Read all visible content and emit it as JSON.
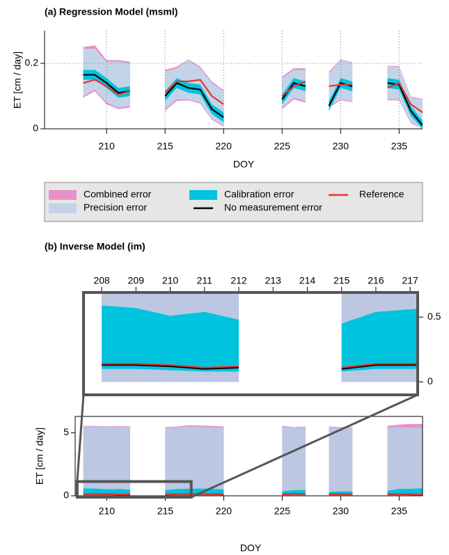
{
  "chart_data": [
    {
      "type": "band-line",
      "title": "(a) Regression Model (msml)",
      "xlabel": "DOY",
      "ylabel": "ET [cm / day]",
      "xlim": [
        204.7,
        237
      ],
      "ylim": [
        0,
        0.3
      ],
      "xticks": [
        210,
        215,
        220,
        225,
        230,
        235
      ],
      "yticks": [
        0,
        0.2
      ],
      "grid": true,
      "legend": "below",
      "x": [
        208,
        209,
        210,
        211,
        212,
        213,
        214,
        215,
        216,
        217,
        218,
        219,
        220,
        221,
        222,
        223,
        224,
        225,
        226,
        227,
        228,
        229,
        230,
        231,
        232,
        233,
        234,
        235,
        236,
        237
      ],
      "series": [
        {
          "name": "Combined error",
          "type": "band",
          "color": "#e891c8",
          "upper": [
            0.25,
            0.255,
            0.21,
            0.21,
            0.205,
            null,
            null,
            0.18,
            0.19,
            0.212,
            0.19,
            0.145,
            0.118,
            null,
            null,
            null,
            null,
            0.16,
            0.185,
            0.185,
            null,
            0.175,
            0.212,
            0.203,
            null,
            null,
            0.192,
            0.192,
            0.098,
            0.092
          ],
          "lower": [
            0.095,
            0.115,
            0.075,
            0.06,
            0.065,
            null,
            null,
            0.055,
            0.085,
            0.087,
            0.077,
            0.027,
            0.007,
            null,
            null,
            null,
            null,
            0.06,
            0.09,
            0.08,
            null,
            0.065,
            0.087,
            0.082,
            null,
            null,
            0.087,
            0.087,
            0.017,
            0
          ]
        },
        {
          "name": "Precision error",
          "type": "band",
          "color": "#c3d4e8",
          "upper": [
            0.245,
            0.245,
            0.205,
            0.205,
            0.2,
            null,
            null,
            0.175,
            0.185,
            0.21,
            0.185,
            0.14,
            0.115,
            null,
            null,
            null,
            null,
            0.155,
            0.18,
            0.18,
            null,
            0.17,
            0.21,
            0.2,
            null,
            null,
            0.19,
            0.19,
            0.095,
            0.09
          ],
          "lower": [
            0.1,
            0.12,
            0.08,
            0.065,
            0.07,
            null,
            null,
            0.06,
            0.09,
            0.09,
            0.08,
            0.03,
            0.01,
            null,
            null,
            null,
            null,
            0.065,
            0.095,
            0.085,
            null,
            0.07,
            0.09,
            0.085,
            null,
            null,
            0.09,
            0.09,
            0.02,
            0
          ]
        },
        {
          "name": "Calibration error",
          "type": "band",
          "color": "#00c4de",
          "upper": [
            0.18,
            0.18,
            0.155,
            0.125,
            0.13,
            null,
            null,
            0.115,
            0.155,
            0.14,
            0.135,
            0.075,
            0.05,
            null,
            null,
            null,
            null,
            0.105,
            0.155,
            0.145,
            null,
            0.085,
            0.155,
            0.145,
            null,
            null,
            0.155,
            0.15,
            0.07,
            0.025
          ],
          "lower": [
            0.15,
            0.15,
            0.125,
            0.095,
            0.1,
            null,
            null,
            0.085,
            0.125,
            0.11,
            0.105,
            0.045,
            0.02,
            null,
            null,
            null,
            null,
            0.075,
            0.125,
            0.115,
            null,
            0.055,
            0.125,
            0.115,
            null,
            null,
            0.125,
            0.12,
            0.04,
            0
          ]
        },
        {
          "name": "No measurement error",
          "type": "line",
          "color": "#000000",
          "values": [
            0.165,
            0.165,
            0.14,
            0.11,
            0.115,
            null,
            null,
            0.1,
            0.14,
            0.125,
            0.12,
            0.06,
            0.035,
            null,
            null,
            null,
            null,
            0.09,
            0.14,
            0.13,
            null,
            0.07,
            0.14,
            0.13,
            null,
            null,
            0.14,
            0.135,
            0.055,
            0.01
          ]
        },
        {
          "name": "Reference",
          "type": "line",
          "color": "#e8352b",
          "values": [
            0.14,
            0.15,
            0.13,
            0.105,
            0.115,
            null,
            null,
            0.11,
            0.145,
            0.145,
            0.15,
            0.1,
            0.075,
            null,
            null,
            null,
            null,
            0.1,
            0.13,
            0.145,
            null,
            0.13,
            0.135,
            0.135,
            null,
            null,
            0.125,
            0.14,
            0.075,
            0.05
          ]
        }
      ]
    },
    {
      "type": "band-line",
      "title": "(b) Inverse Model (im)",
      "xlabel": "DOY",
      "ylabel": "ET [cm / day]",
      "xlim": [
        207.3,
        237
      ],
      "ylim": [
        0,
        6.3
      ],
      "xticks": [
        210,
        215,
        220,
        225,
        230,
        235
      ],
      "yticks": [
        0,
        5
      ],
      "grid": false,
      "inset": {
        "xlim": [
          207.47,
          217.22
        ],
        "ylim": [
          -0.1,
          0.69
        ],
        "xticks": [
          208,
          209,
          210,
          211,
          212,
          213,
          214,
          215,
          216,
          217
        ],
        "yticks": [
          0,
          0.5
        ]
      },
      "x": [
        208,
        209,
        210,
        211,
        212,
        213,
        214,
        215,
        216,
        217,
        218,
        219,
        220,
        221,
        222,
        223,
        224,
        225,
        226,
        227,
        228,
        229,
        230,
        231,
        232,
        233,
        234,
        235,
        236,
        237
      ],
      "series": [
        {
          "type": "band",
          "color": "#e891c8",
          "upper": [
            5.55,
            5.55,
            5.52,
            5.55,
            5.5,
            null,
            null,
            5.45,
            5.5,
            5.6,
            5.58,
            5.55,
            5.5,
            null,
            null,
            null,
            null,
            5.55,
            5.45,
            5.5,
            null,
            5.5,
            5.45,
            5.45,
            null,
            null,
            5.55,
            5.65,
            5.7,
            5.7
          ],
          "lower": [
            0,
            0,
            0,
            0,
            0,
            null,
            null,
            0,
            0,
            0,
            0,
            0,
            0,
            null,
            null,
            null,
            null,
            0,
            0,
            0,
            null,
            0,
            0,
            0,
            null,
            null,
            0,
            0,
            0,
            0
          ]
        },
        {
          "type": "band",
          "color": "#bcc7e2",
          "upper": [
            5.5,
            5.5,
            5.5,
            5.5,
            5.45,
            null,
            null,
            5.4,
            5.45,
            5.5,
            5.5,
            5.45,
            5.4,
            null,
            null,
            null,
            null,
            5.45,
            5.4,
            5.45,
            null,
            5.45,
            5.4,
            5.4,
            null,
            null,
            5.4,
            5.45,
            5.4,
            5.4
          ],
          "lower": [
            0,
            0,
            0,
            0,
            0,
            null,
            null,
            0,
            0,
            0,
            0,
            0,
            0,
            null,
            null,
            null,
            null,
            0,
            0,
            0,
            null,
            0,
            0,
            0,
            null,
            null,
            0,
            0,
            0,
            0
          ]
        },
        {
          "type": "band",
          "color": "#00c4de",
          "upper": [
            0.59,
            0.57,
            0.51,
            0.54,
            0.48,
            null,
            null,
            0.45,
            0.54,
            0.56,
            0.58,
            0.55,
            0.5,
            null,
            null,
            null,
            null,
            0.35,
            0.45,
            0.45,
            null,
            0.3,
            0.35,
            0.35,
            null,
            null,
            0.4,
            0.55,
            0.55,
            0.6
          ],
          "lower": [
            0.1,
            0.1,
            0.09,
            0.08,
            0.08,
            null,
            null,
            0.08,
            0.1,
            0.1,
            0.1,
            0.09,
            0.08,
            null,
            null,
            null,
            null,
            0.09,
            0.1,
            0.1,
            null,
            0.09,
            0.1,
            0.1,
            null,
            null,
            0.09,
            0.1,
            0.09,
            0.08
          ]
        },
        {
          "type": "line",
          "color": "#000000",
          "values": [
            0.13,
            0.13,
            0.12,
            0.1,
            0.11,
            null,
            null,
            0.1,
            0.13,
            0.13,
            0.13,
            0.12,
            0.11,
            null,
            null,
            null,
            null,
            0.12,
            0.14,
            0.14,
            null,
            0.12,
            0.13,
            0.13,
            null,
            null,
            0.12,
            0.13,
            0.11,
            0.1
          ]
        },
        {
          "type": "line",
          "color": "#e8352b",
          "values": [
            0.14,
            0.14,
            0.13,
            0.11,
            0.12,
            null,
            null,
            0.11,
            0.14,
            0.14,
            0.14,
            0.13,
            0.12,
            null,
            null,
            null,
            null,
            0.13,
            0.15,
            0.15,
            null,
            0.13,
            0.14,
            0.14,
            null,
            null,
            0.13,
            0.14,
            0.12,
            0.11
          ]
        }
      ]
    }
  ]
}
